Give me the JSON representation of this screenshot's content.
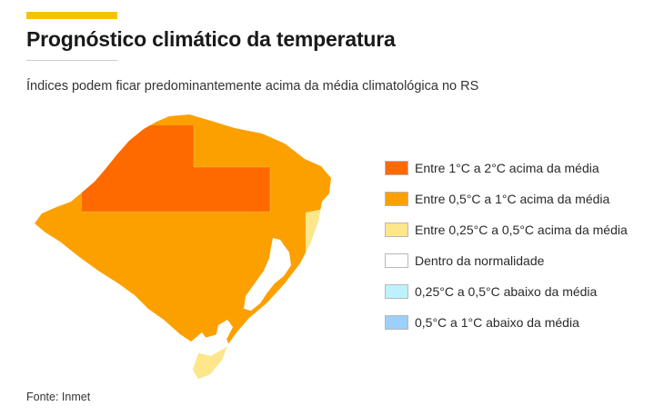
{
  "header": {
    "title": "Prognóstico climático da temperatura",
    "subtitle": "Índices podem ficar predominantemente acima da média climatológica no RS"
  },
  "map": {
    "region": "RS",
    "colors": {
      "strong_above": "#ff6a00",
      "above": "#fca000",
      "slight_above": "#fde78a",
      "normal": "#ffffff",
      "slight_below": "#bdf2fc",
      "below": "#9ccffa"
    }
  },
  "legend": {
    "items": [
      {
        "label": "Entre 1°C a 2°C acima da média",
        "color": "#ff6a00"
      },
      {
        "label": "Entre 0,5°C a 1°C acima da média",
        "color": "#fca000"
      },
      {
        "label": "Entre 0,25°C a 0,5°C acima da média",
        "color": "#fde78a"
      },
      {
        "label": "Dentro da normalidade",
        "color": "#ffffff"
      },
      {
        "label": "0,25°C a 0,5°C abaixo da média",
        "color": "#bdf2fc"
      },
      {
        "label": "0,5°C a 1°C abaixo da média",
        "color": "#9ccffa"
      }
    ]
  },
  "footer": {
    "source": "Fonte: Inmet"
  }
}
